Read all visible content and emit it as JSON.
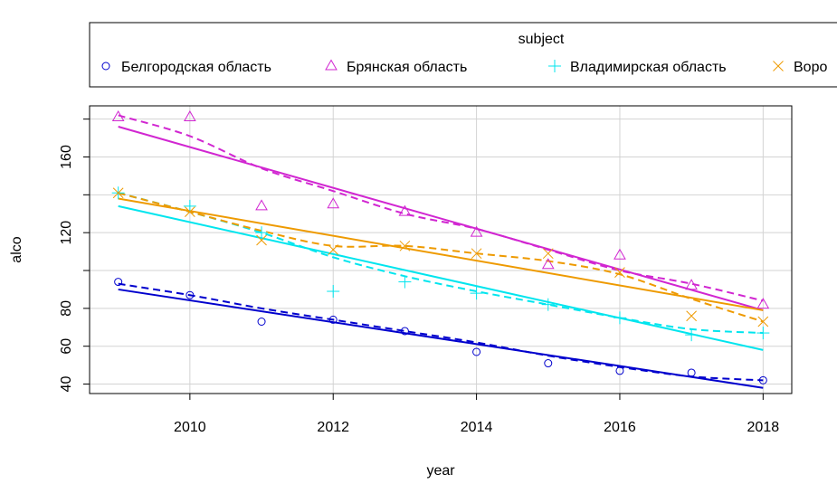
{
  "chart_data": {
    "type": "scatter",
    "xlabel": "year",
    "ylabel": "alco",
    "xlim": [
      2008.6,
      2018.4
    ],
    "ylim": [
      35,
      187
    ],
    "grid": true,
    "x_ticks": [
      2010,
      2012,
      2014,
      2016,
      2018
    ],
    "y_ticks": [
      40,
      60,
      80,
      120,
      160
    ],
    "y_gridlines": [
      40,
      60,
      80,
      100,
      120,
      140,
      160,
      180
    ],
    "legend": {
      "title": "subject",
      "placement": "top",
      "entries": [
        "Белгородская область",
        "Брянская область",
        "Владимирская область",
        "Воро"
      ]
    },
    "x": [
      2009,
      2010,
      2011,
      2012,
      2013,
      2014,
      2015,
      2016,
      2017,
      2018
    ],
    "series": [
      {
        "name": "Белгородская область",
        "color": "#0000cd",
        "marker": "circle",
        "values": [
          94,
          87,
          73,
          74,
          68,
          57,
          51,
          47,
          46,
          42
        ],
        "trend_line": [
          90,
          38
        ],
        "smooth_line": [
          93,
          87,
          80,
          74,
          68,
          62,
          55,
          49,
          44,
          42
        ]
      },
      {
        "name": "Брянская область",
        "color": "#d126d1",
        "marker": "triangle",
        "values": [
          181,
          181,
          134,
          135,
          131,
          120,
          103,
          108,
          92,
          82
        ],
        "trend_line": [
          176,
          79
        ],
        "smooth_line": [
          182,
          171,
          154,
          142,
          130,
          122,
          111,
          100,
          93,
          84
        ]
      },
      {
        "name": "Владимирская область",
        "color": "#00e5ee",
        "marker": "plus",
        "values": [
          141,
          134,
          120,
          89,
          94,
          88,
          82,
          75,
          66,
          67
        ],
        "trend_line": [
          134,
          58
        ],
        "smooth_line": [
          141,
          131,
          120,
          107,
          97,
          89,
          82,
          75,
          69,
          67
        ]
      },
      {
        "name": "Воро",
        "color": "#ee9a00",
        "marker": "x",
        "values": [
          141,
          131,
          116,
          111,
          113,
          109,
          109,
          99,
          76,
          73
        ],
        "trend_line": [
          138,
          79
        ],
        "smooth_line": [
          141,
          131,
          121,
          113,
          113,
          109,
          105,
          98,
          85,
          73
        ]
      }
    ]
  }
}
